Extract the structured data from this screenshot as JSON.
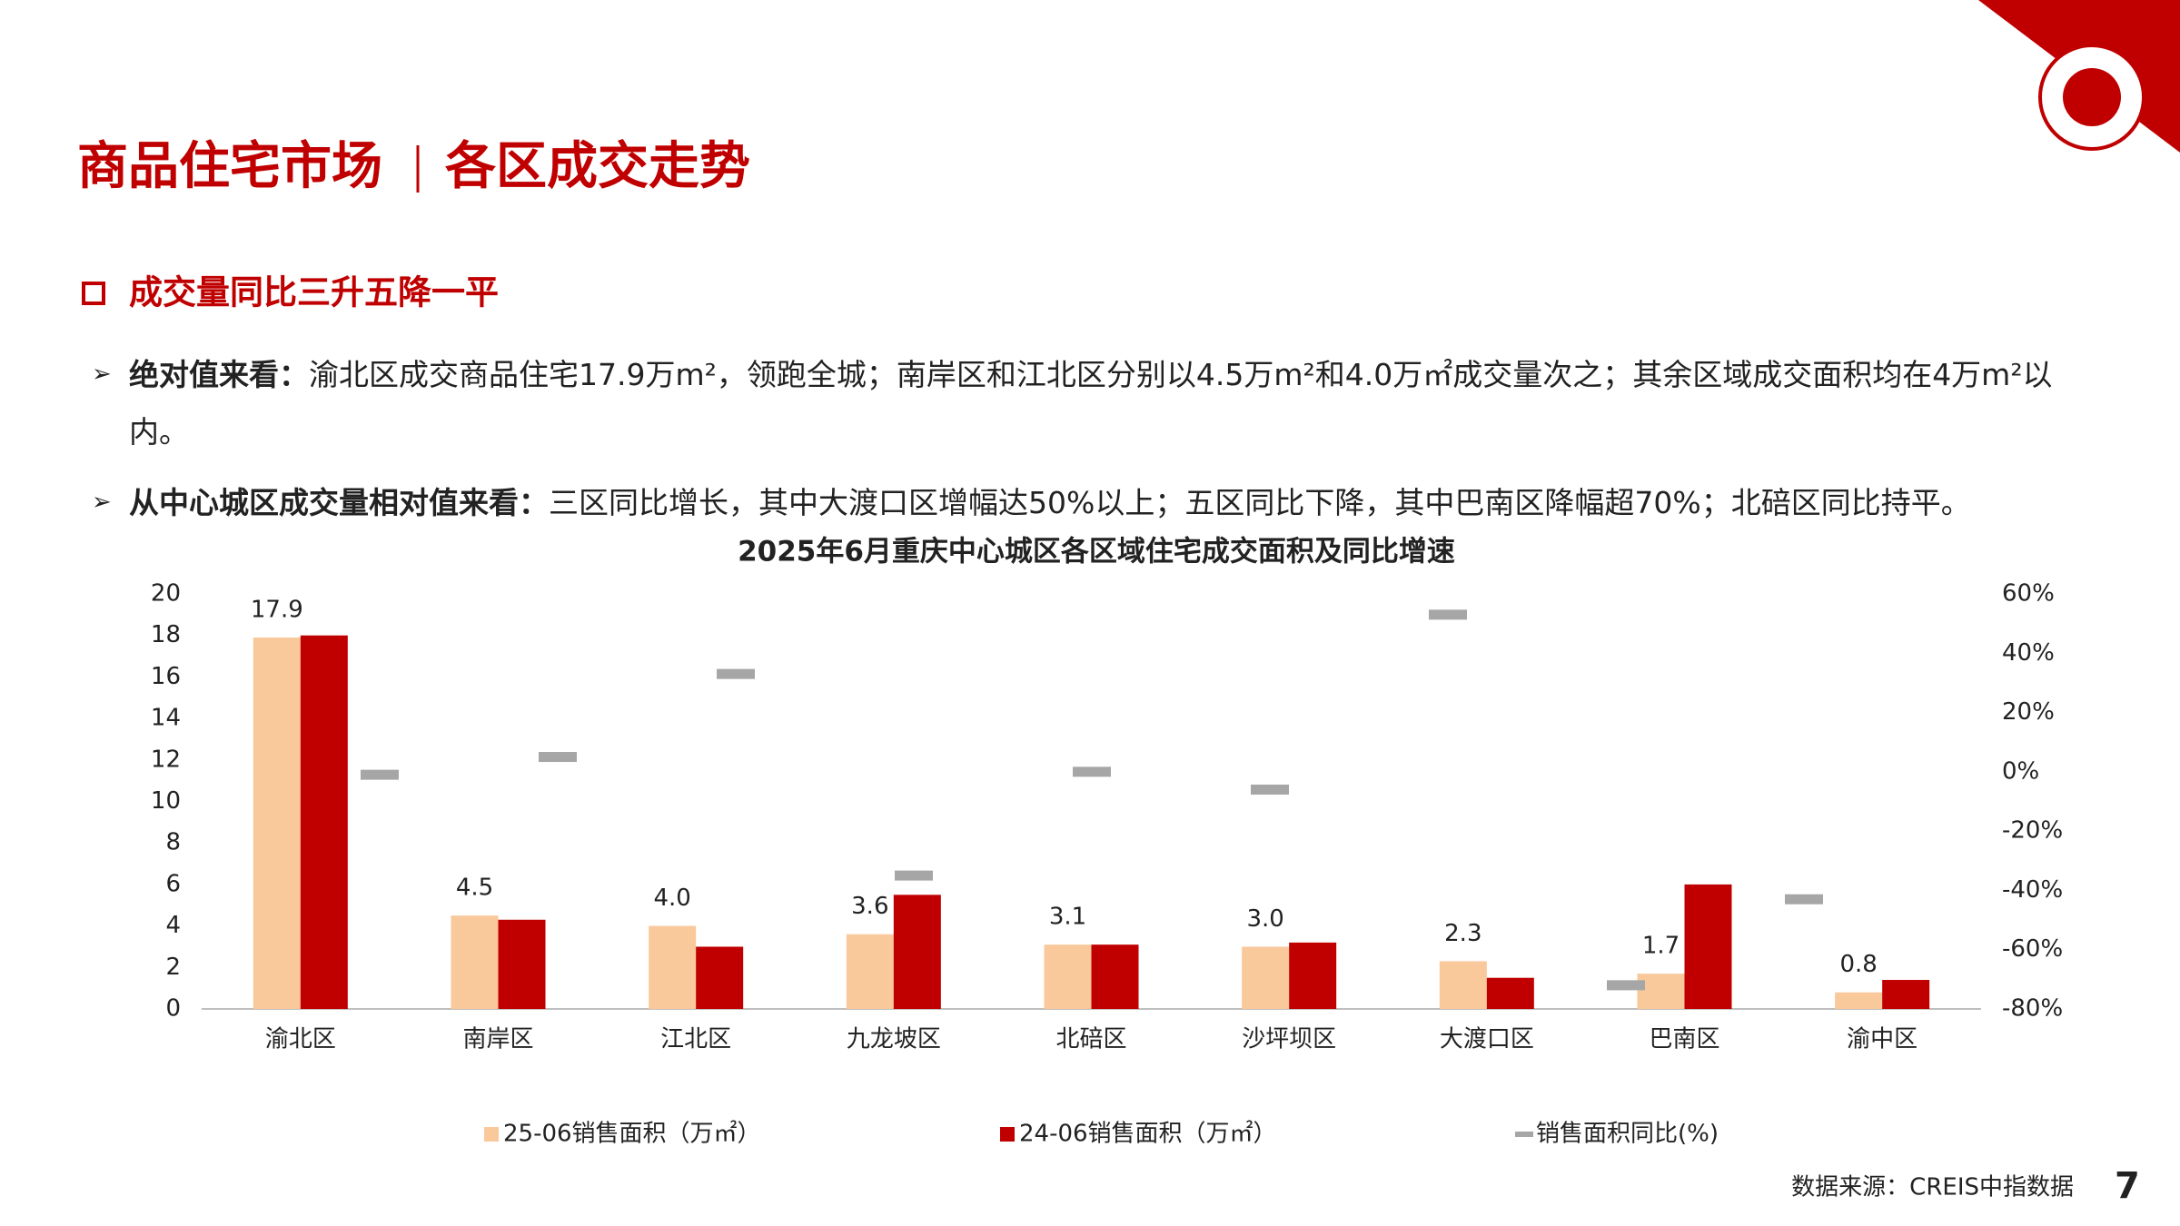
{
  "header": {
    "title": "商品住宅市场",
    "subtitle": "各区成交走势"
  },
  "section": {
    "title": "成交量同比三升五降一平"
  },
  "bullets": [
    {
      "label": "绝对值来看：",
      "text": "渝北区成交商品住宅17.9万m²，领跑全城；南岸区和江北区分别以4.5万m²和4.0万㎡成交量次之；其余区域成交面积均在4万m²以内。"
    },
    {
      "label": "从中心城区成交量相对值来看：",
      "text": "三区同比增长，其中大渡口区增幅达50%以上；五区同比下降，其中巴南区降幅超70%；北碚区同比持平。"
    }
  ],
  "chart_data": {
    "type": "bar",
    "title": "2025年6月重庆中心城区各区域住宅成交面积及同比增速",
    "categories": [
      "渝北区",
      "南岸区",
      "江北区",
      "九龙坡区",
      "北碚区",
      "沙坪坝区",
      "大渡口区",
      "巴南区",
      "渝中区"
    ],
    "series": [
      {
        "name": "25-06销售面积（万㎡）",
        "color": "#f9c89b",
        "values": [
          17.9,
          4.5,
          4.0,
          3.6,
          3.1,
          3.0,
          2.3,
          1.7,
          0.8
        ],
        "value_labels": [
          "17.9",
          "4.5",
          "4.0",
          "3.6",
          "3.1",
          "3.0",
          "2.3",
          "1.7",
          "0.8"
        ]
      },
      {
        "name": "24-06销售面积（万㎡）",
        "color": "#c00000",
        "values": [
          18.0,
          4.3,
          3.0,
          5.5,
          3.1,
          3.2,
          1.5,
          6.0,
          1.4
        ]
      },
      {
        "name": "销售面积同比(%)",
        "color": "#a6a6a6",
        "axis": "y2",
        "marker": "dash",
        "values": [
          -1,
          5,
          33,
          -35,
          0,
          -6,
          53,
          -72,
          -43
        ]
      }
    ],
    "ylim": [
      0,
      20
    ],
    "yticks": [
      0,
      2,
      4,
      6,
      8,
      10,
      12,
      14,
      16,
      18,
      20
    ],
    "y2lim": [
      -80,
      60
    ],
    "y2ticks": [
      {
        "value": -80,
        "label": "-80%"
      },
      {
        "value": -60,
        "label": "-60%"
      },
      {
        "value": -40,
        "label": "-40%"
      },
      {
        "value": -20,
        "label": "-20%"
      },
      {
        "value": 0,
        "label": "0%"
      },
      {
        "value": 20,
        "label": "20%"
      },
      {
        "value": 40,
        "label": "40%"
      },
      {
        "value": 60,
        "label": "60%"
      }
    ],
    "grid": false,
    "legend": "bottom"
  },
  "footer": {
    "source": "数据来源：CREIS中指数据",
    "page": "7"
  }
}
